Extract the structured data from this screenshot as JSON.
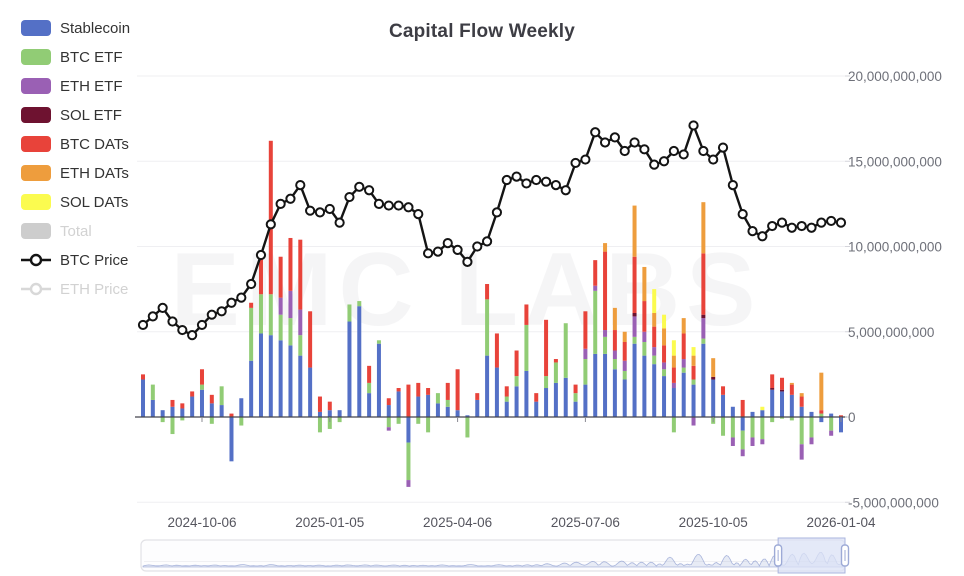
{
  "title": "Capital Flow Weekly",
  "watermark": "EMC LABS",
  "legend": {
    "items": [
      {
        "label": "Stablecoin",
        "color": "#5470C6",
        "type": "bar",
        "enabled": true
      },
      {
        "label": "BTC ETF",
        "color": "#91CC75",
        "type": "bar",
        "enabled": true
      },
      {
        "label": "ETH ETF",
        "color": "#9A60B4",
        "type": "bar",
        "enabled": true
      },
      {
        "label": "SOL ETF",
        "color": "#6E1230",
        "type": "bar",
        "enabled": true
      },
      {
        "label": "BTC DATs",
        "color": "#E8433A",
        "type": "bar",
        "enabled": true
      },
      {
        "label": "ETH DATs",
        "color": "#EE9D3D",
        "type": "bar",
        "enabled": true
      },
      {
        "label": "SOL DATs",
        "color": "#FBFB4F",
        "type": "bar",
        "enabled": true
      },
      {
        "label": "Total",
        "color": "#CDCDCD",
        "type": "bar",
        "enabled": false
      },
      {
        "label": "BTC Price",
        "color": "#141414",
        "type": "line",
        "enabled": true
      },
      {
        "label": "ETH Price",
        "color": "#D8D8D8",
        "type": "line",
        "enabled": false
      }
    ]
  },
  "chart_data": {
    "type": "mixed-stacked-bar-line",
    "title": "Capital Flow Weekly",
    "values_unit": "USD, read from right axis; stored here in billions",
    "grid": true,
    "legend_position": "left",
    "y_axis": {
      "position": "right",
      "tick_values_billions": [
        20,
        15,
        10,
        5,
        0,
        -5
      ],
      "tick_labels": [
        "20,000,000,000",
        "15,000,000,000",
        "10,000,000,000",
        "5,000,000,000",
        "0",
        "-5,000,000,000"
      ],
      "range_billions": [
        -6.8,
        21.5
      ]
    },
    "x_axis": {
      "tick_labels": [
        "2024-10-06",
        "2025-01-05",
        "2025-04-06",
        "2025-07-06",
        "2025-10-05",
        "2026-01-04"
      ],
      "tick_indices": [
        6,
        19,
        32,
        45,
        58,
        71
      ]
    },
    "weeks": [
      "2024-08-25",
      "2024-09-01",
      "2024-09-08",
      "2024-09-15",
      "2024-09-22",
      "2024-09-29",
      "2024-10-06",
      "2024-10-13",
      "2024-10-20",
      "2024-10-27",
      "2024-11-03",
      "2024-11-10",
      "2024-11-17",
      "2024-11-24",
      "2024-12-01",
      "2024-12-08",
      "2024-12-15",
      "2024-12-22",
      "2024-12-29",
      "2025-01-05",
      "2025-01-12",
      "2025-01-19",
      "2025-01-26",
      "2025-02-02",
      "2025-02-09",
      "2025-02-16",
      "2025-02-23",
      "2025-03-02",
      "2025-03-09",
      "2025-03-16",
      "2025-03-23",
      "2025-03-30",
      "2025-04-06",
      "2025-04-13",
      "2025-04-20",
      "2025-04-27",
      "2025-05-04",
      "2025-05-11",
      "2025-05-18",
      "2025-05-25",
      "2025-06-01",
      "2025-06-08",
      "2025-06-15",
      "2025-06-22",
      "2025-06-29",
      "2025-07-06",
      "2025-07-13",
      "2025-07-20",
      "2025-07-27",
      "2025-08-03",
      "2025-08-10",
      "2025-08-17",
      "2025-08-24",
      "2025-08-31",
      "2025-09-07",
      "2025-09-14",
      "2025-09-21",
      "2025-09-28",
      "2025-10-05",
      "2025-10-12",
      "2025-10-19",
      "2025-10-26",
      "2025-11-02",
      "2025-11-09",
      "2025-11-16",
      "2025-11-23",
      "2025-11-30",
      "2025-12-07",
      "2025-12-14",
      "2025-12-21",
      "2025-12-28",
      "2026-01-04"
    ],
    "series": [
      {
        "name": "Stablecoin",
        "color": "#5470C6",
        "values_billions": [
          2.2,
          1.0,
          0.4,
          0.6,
          0.5,
          1.2,
          1.6,
          0.8,
          0.7,
          -2.6,
          1.1,
          3.3,
          4.9,
          4.8,
          4.5,
          4.2,
          3.6,
          2.9,
          0.3,
          0.4,
          0.4,
          5.6,
          6.5,
          1.4,
          4.3,
          0.7,
          1.5,
          -1.5,
          1.2,
          1.3,
          0.8,
          0.6,
          0.4,
          0.1,
          1.0,
          3.6,
          2.9,
          0.9,
          1.8,
          2.7,
          0.9,
          1.7,
          2.0,
          2.3,
          0.9,
          1.9,
          3.7,
          3.7,
          2.8,
          2.2,
          4.3,
          3.6,
          3.1,
          2.4,
          1.7,
          2.6,
          1.9,
          4.3,
          2.2,
          1.3,
          0.6,
          -0.8,
          0.3,
          0.4,
          1.6,
          1.5,
          1.3,
          0.6,
          0.3,
          -0.3,
          0.2,
          -0.9
        ]
      },
      {
        "name": "BTC ETF",
        "color": "#91CC75",
        "values_billions": [
          0,
          0.9,
          -0.3,
          -1.0,
          -0.2,
          0,
          0.3,
          -0.4,
          1.1,
          0,
          -0.5,
          3.1,
          2.3,
          2.4,
          1.5,
          1.6,
          1.2,
          0,
          -0.9,
          -0.7,
          -0.3,
          1.0,
          0.3,
          0.6,
          0.2,
          -0.6,
          -0.4,
          -2.2,
          -0.4,
          -0.9,
          0.6,
          0.4,
          0,
          -1.2,
          0,
          3.3,
          0,
          0.3,
          0.6,
          2.7,
          0,
          0.7,
          1.2,
          3.2,
          0.5,
          1.5,
          3.7,
          1.0,
          0.6,
          0.5,
          0.4,
          0.8,
          0.5,
          0.4,
          -0.9,
          0.3,
          0.3,
          0.3,
          -0.4,
          -1.1,
          -1.2,
          -1.1,
          -1.2,
          -1.3,
          -0.3,
          -0.1,
          -0.2,
          -1.6,
          -1.2,
          0.2,
          -0.8,
          0
        ]
      },
      {
        "name": "ETH ETF",
        "color": "#9A60B4",
        "values_billions": [
          0,
          0,
          0,
          0,
          0,
          0,
          0,
          0,
          0,
          0,
          0,
          0,
          0,
          0,
          1.0,
          1.6,
          1.5,
          0,
          0,
          0,
          0,
          0,
          0,
          0,
          0,
          -0.2,
          0,
          -0.4,
          0,
          0,
          0,
          0,
          0,
          0,
          0,
          0,
          0,
          0,
          0,
          0,
          0,
          0,
          0,
          0,
          0,
          0.6,
          0.3,
          0.4,
          0.5,
          0.6,
          1.2,
          0.6,
          0.5,
          0.4,
          0.3,
          0.5,
          -0.5,
          1.2,
          0,
          0,
          -0.5,
          -0.4,
          -0.5,
          -0.3,
          0,
          0,
          0,
          -0.9,
          -0.4,
          0,
          -0.3,
          0
        ]
      },
      {
        "name": "SOL ETF",
        "color": "#6E1230",
        "values_billions": [
          0,
          0,
          0,
          0,
          0,
          0,
          0,
          0,
          0,
          0,
          0,
          0,
          0,
          0,
          0,
          0,
          0,
          0,
          0,
          0,
          0,
          0,
          0,
          0,
          0,
          0,
          0,
          0,
          0,
          0,
          0,
          0,
          0,
          0,
          0,
          0,
          0,
          0,
          0,
          0,
          0,
          0,
          0,
          0,
          0,
          0,
          0,
          0,
          0,
          0,
          0.2,
          0,
          0,
          0,
          0,
          0,
          0,
          0.2,
          0.15,
          0,
          0,
          0,
          0,
          0,
          0.1,
          0.1,
          0,
          0,
          0,
          0,
          0,
          0
        ]
      },
      {
        "name": "BTC DATs",
        "color": "#E8433A",
        "values_billions": [
          0.3,
          0,
          0,
          0.4,
          0.3,
          0.3,
          0.9,
          0.5,
          0,
          0.2,
          0,
          0.3,
          2.4,
          9.0,
          2.4,
          3.1,
          4.1,
          3.3,
          0.9,
          0.5,
          0,
          0,
          0,
          1.0,
          0,
          0.4,
          0.2,
          1.9,
          0.8,
          0.4,
          0,
          1.0,
          2.4,
          0,
          0.4,
          0.9,
          2.0,
          0.6,
          1.5,
          1.2,
          0.5,
          3.3,
          0.2,
          0,
          0.5,
          2.2,
          1.5,
          4.6,
          1.2,
          1.1,
          3.3,
          1.8,
          1.2,
          1.0,
          0.9,
          1.5,
          0.8,
          3.6,
          0,
          0.5,
          0,
          1.0,
          0,
          0,
          0.8,
          0.7,
          0.6,
          0.6,
          0,
          0.2,
          0,
          0.1
        ]
      },
      {
        "name": "ETH DATs",
        "color": "#EE9D3D",
        "values_billions": [
          0,
          0,
          0,
          0,
          0,
          0,
          0,
          0,
          0,
          0,
          0,
          0,
          0,
          0,
          0,
          0,
          0,
          0,
          0,
          0,
          0,
          0,
          0,
          0,
          0,
          0,
          0,
          0,
          0,
          0,
          0,
          0,
          0,
          0,
          0,
          0,
          0,
          0,
          0,
          0,
          0,
          0,
          0,
          0,
          0,
          0,
          0,
          0.5,
          1.3,
          0.6,
          3.0,
          2.0,
          0.8,
          1.0,
          0.7,
          0.9,
          0.6,
          3.0,
          1.1,
          0,
          0,
          0,
          0,
          0,
          0,
          0,
          0.1,
          0.2,
          0,
          2.2,
          0,
          0
        ]
      },
      {
        "name": "SOL DATs",
        "color": "#FBFB4F",
        "values_billions": [
          0,
          0,
          0,
          0,
          0,
          0,
          0,
          0,
          0,
          0,
          0,
          0,
          0,
          0,
          0,
          0,
          0,
          0,
          0,
          0,
          0,
          0,
          0,
          0,
          0,
          0,
          0,
          0,
          0,
          0,
          0,
          0,
          0,
          0,
          0,
          0,
          0,
          0,
          0,
          0,
          0,
          0,
          0,
          0,
          0,
          0,
          0,
          0,
          0,
          0,
          0,
          0,
          1.4,
          0.8,
          0.9,
          0,
          0.5,
          0,
          0,
          0,
          0,
          0,
          0,
          0.2,
          0,
          0,
          0,
          0,
          0,
          0,
          0,
          0
        ]
      }
    ],
    "line_series": {
      "name": "BTC Price",
      "color": "#141414",
      "marker": "empty-circle",
      "values_billions_on_axis": [
        5.4,
        5.9,
        6.4,
        5.6,
        5.1,
        4.8,
        5.4,
        6.0,
        6.2,
        6.7,
        7.0,
        7.8,
        9.5,
        11.3,
        12.5,
        12.8,
        13.6,
        12.1,
        12.0,
        12.2,
        11.4,
        12.9,
        13.5,
        13.3,
        12.5,
        12.4,
        12.4,
        12.3,
        11.9,
        9.6,
        9.7,
        10.2,
        9.8,
        9.1,
        10.0,
        10.3,
        12.0,
        13.9,
        14.1,
        13.7,
        13.9,
        13.8,
        13.6,
        13.3,
        14.9,
        15.1,
        16.7,
        16.1,
        16.4,
        15.6,
        16.1,
        15.7,
        14.8,
        15.0,
        15.6,
        15.4,
        17.1,
        15.6,
        15.1,
        15.8,
        13.6,
        11.9,
        10.9,
        10.6,
        11.2,
        11.4,
        11.1,
        11.2,
        11.1,
        11.4,
        11.5,
        11.4
      ]
    },
    "navigator": {
      "visible": true,
      "window_fraction": [
        0.905,
        1.0
      ],
      "window_fill": "#dbe1f6",
      "track_border": "#e2e2e6"
    }
  }
}
